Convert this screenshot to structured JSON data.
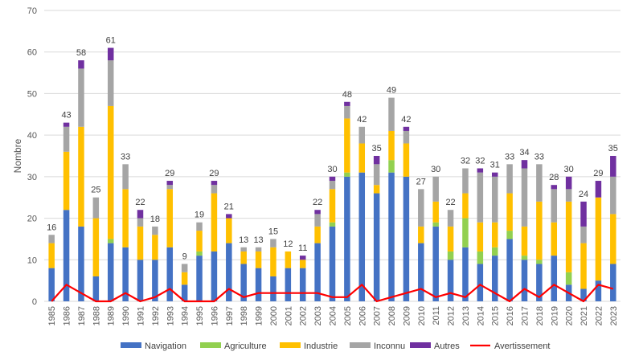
{
  "chart_data": {
    "type": "bar",
    "stacked": true,
    "ylabel": "Nombre",
    "ylim": [
      0,
      70
    ],
    "yticks": [
      0,
      10,
      20,
      30,
      40,
      50,
      60,
      70
    ],
    "grid": true,
    "legend_position": "bottom",
    "categories": [
      "1985",
      "1986",
      "1987",
      "1988",
      "1989",
      "1990",
      "1991",
      "1992",
      "1993",
      "1994",
      "1995",
      "1996",
      "1997",
      "1998",
      "1999",
      "2000",
      "2001",
      "2002",
      "2003",
      "2004",
      "2005",
      "2006",
      "2007",
      "2008",
      "2009",
      "2010",
      "2011",
      "2012",
      "2013",
      "2014",
      "2015",
      "2016",
      "2017",
      "2018",
      "2019",
      "2020",
      "2021",
      "2022",
      "2023"
    ],
    "series": [
      {
        "name": "Navigation",
        "color": "#4472C4",
        "values": [
          8,
          22,
          18,
          6,
          14,
          13,
          10,
          10,
          13,
          4,
          11,
          12,
          14,
          9,
          8,
          6,
          8,
          8,
          14,
          18,
          30,
          31,
          26,
          31,
          30,
          14,
          18,
          10,
          13,
          9,
          11,
          15,
          10,
          9,
          11,
          4,
          3,
          5,
          9
        ]
      },
      {
        "name": "Agriculture",
        "color": "#92D050",
        "values": [
          0,
          0,
          0,
          0,
          1,
          0,
          0,
          0,
          0,
          0,
          1,
          0,
          0,
          0,
          0,
          0,
          0,
          0,
          0,
          1,
          1,
          0,
          0,
          3,
          0,
          0,
          1,
          2,
          7,
          3,
          2,
          2,
          1,
          1,
          0,
          3,
          0,
          0,
          0
        ]
      },
      {
        "name": "Industrie",
        "color": "#FFC000",
        "values": [
          6,
          14,
          24,
          14,
          32,
          14,
          8,
          6,
          14,
          3,
          5,
          14,
          6,
          3,
          4,
          7,
          4,
          2,
          4,
          8,
          13,
          7,
          2,
          7,
          8,
          4,
          5,
          6,
          6,
          7,
          6,
          9,
          7,
          14,
          8,
          17,
          11,
          20,
          12
        ]
      },
      {
        "name": "Inconnu",
        "color": "#A5A5A5",
        "values": [
          2,
          6,
          14,
          5,
          11,
          6,
          2,
          2,
          1,
          2,
          2,
          2,
          0,
          1,
          1,
          2,
          0,
          0,
          3,
          2,
          3,
          4,
          5,
          8,
          3,
          9,
          6,
          4,
          6,
          12,
          11,
          7,
          14,
          9,
          8,
          3,
          4,
          0,
          9
        ]
      },
      {
        "name": "Autres",
        "color": "#7030A0",
        "values": [
          0,
          1,
          2,
          0,
          3,
          0,
          2,
          0,
          1,
          0,
          0,
          1,
          1,
          0,
          0,
          0,
          0,
          1,
          1,
          1,
          1,
          0,
          2,
          0,
          1,
          0,
          0,
          0,
          0,
          1,
          1,
          0,
          2,
          0,
          1,
          3,
          6,
          4,
          5
        ]
      }
    ],
    "totals": [
      16,
      43,
      58,
      25,
      61,
      33,
      22,
      18,
      29,
      9,
      19,
      29,
      21,
      13,
      13,
      15,
      12,
      11,
      22,
      30,
      48,
      42,
      35,
      49,
      42,
      27,
      30,
      22,
      32,
      32,
      31,
      33,
      34,
      33,
      28,
      30,
      24,
      29,
      35
    ],
    "line": {
      "name": "Avertissement",
      "color": "#FF0000",
      "values": [
        0,
        4,
        2,
        0,
        0,
        2,
        0,
        1,
        3,
        0,
        0,
        0,
        3,
        1,
        2,
        2,
        2,
        2,
        2,
        1,
        1,
        4,
        0,
        1,
        2,
        3,
        1,
        2,
        1,
        4,
        2,
        0,
        3,
        1,
        4,
        2,
        0,
        4,
        3
      ]
    }
  }
}
